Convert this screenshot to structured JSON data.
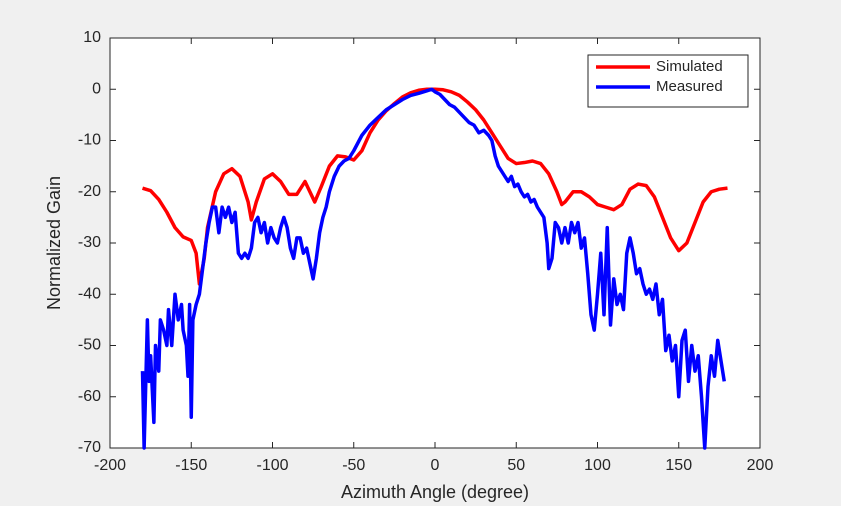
{
  "chart_data": {
    "type": "line",
    "xlabel": "Azimuth Angle (degree)",
    "ylabel": "Normalized Gain",
    "xlim": [
      -200,
      200
    ],
    "xticks": [
      -200,
      -150,
      -100,
      -50,
      0,
      50,
      100,
      150,
      200
    ],
    "ylim": [
      -70,
      10
    ],
    "yticks": [
      -70,
      -60,
      -50,
      -40,
      -30,
      -20,
      -10,
      0,
      10
    ],
    "legend": "northeast",
    "series": [
      {
        "name": "Simulated",
        "color": "#ff0000",
        "x": [
          -180,
          -175,
          -170,
          -165,
          -160,
          -155,
          -150,
          -147,
          -145,
          -142,
          -140,
          -135,
          -130,
          -125,
          -120,
          -115,
          -113,
          -110,
          -105,
          -100,
          -95,
          -90,
          -85,
          -80,
          -77,
          -74,
          -70,
          -65,
          -60,
          -55,
          -50,
          -45,
          -40,
          -35,
          -30,
          -25,
          -20,
          -15,
          -10,
          -5,
          0,
          5,
          10,
          15,
          20,
          25,
          30,
          35,
          40,
          45,
          50,
          55,
          60,
          65,
          70,
          75,
          78,
          80,
          85,
          90,
          95,
          100,
          105,
          110,
          115,
          120,
          125,
          130,
          135,
          140,
          145,
          150,
          155,
          160,
          165,
          170,
          175,
          180
        ],
        "values": [
          -19.3,
          -19.8,
          -21.5,
          -24,
          -27,
          -28.8,
          -29.5,
          -32,
          -38,
          -33,
          -27,
          -20,
          -16.5,
          -15.5,
          -17,
          -22,
          -25.5,
          -22,
          -17.5,
          -16.5,
          -18,
          -20.5,
          -20.5,
          -18,
          -20,
          -22,
          -19,
          -15,
          -13,
          -13.2,
          -13.8,
          -12,
          -8.5,
          -6,
          -4.2,
          -2.8,
          -1.5,
          -0.7,
          -0.2,
          0,
          0,
          -0.1,
          -0.5,
          -1.2,
          -2.5,
          -4,
          -6,
          -8.5,
          -11,
          -13.5,
          -14.5,
          -14.3,
          -14,
          -14.5,
          -16.5,
          -20,
          -22.5,
          -22,
          -20,
          -20,
          -21,
          -22.5,
          -23,
          -23.5,
          -22.5,
          -19.5,
          -18.5,
          -18.8,
          -21,
          -25,
          -29,
          -31.5,
          -30,
          -26,
          -22,
          -20,
          -19.5,
          -19.3
        ]
      },
      {
        "name": "Measured",
        "color": "#0000ff",
        "x": [
          -180,
          -179,
          -177,
          -176,
          -175,
          -173,
          -172,
          -170,
          -169,
          -167,
          -165,
          -164,
          -162,
          -160,
          -158,
          -156,
          -155,
          -153,
          -152,
          -151,
          -150,
          -149,
          -147,
          -145,
          -143,
          -141,
          -139,
          -137,
          -135,
          -133,
          -131,
          -129,
          -127,
          -125,
          -123,
          -121,
          -119,
          -117,
          -115,
          -113,
          -111,
          -109,
          -107,
          -105,
          -103,
          -101,
          -99,
          -97,
          -95,
          -93,
          -91,
          -89,
          -87,
          -85,
          -83,
          -81,
          -79,
          -77,
          -75,
          -73,
          -71,
          -69,
          -67,
          -65,
          -62,
          -59,
          -56,
          -53,
          -50,
          -45,
          -40,
          -35,
          -30,
          -25,
          -20,
          -15,
          -10,
          -5,
          -2,
          0,
          3,
          6,
          9,
          12,
          15,
          18,
          21,
          24,
          27,
          30,
          33,
          35,
          37,
          39,
          41,
          43,
          45,
          47,
          49,
          51,
          53,
          55,
          57,
          59,
          61,
          63,
          65,
          67,
          69,
          70,
          72,
          74,
          76,
          78,
          80,
          82,
          84,
          86,
          88,
          90,
          92,
          94,
          96,
          98,
          100,
          102,
          104,
          106,
          108,
          110,
          112,
          114,
          116,
          118,
          120,
          122,
          124,
          126,
          128,
          130,
          132,
          134,
          136,
          138,
          140,
          142,
          144,
          146,
          148,
          150,
          152,
          154,
          156,
          158,
          160,
          162,
          164,
          166,
          168,
          170,
          172,
          174,
          176,
          178
        ],
        "values": [
          -55,
          -70,
          -45,
          -57,
          -52,
          -65,
          -50,
          -55,
          -45,
          -47,
          -50,
          -43,
          -50,
          -40,
          -45,
          -42,
          -47,
          -50,
          -56,
          -42,
          -64,
          -45,
          -42,
          -40,
          -35,
          -30,
          -26,
          -23,
          -23,
          -28,
          -23,
          -25,
          -23,
          -26,
          -24,
          -32,
          -33,
          -32,
          -33,
          -31,
          -26,
          -25,
          -28,
          -26,
          -30,
          -27,
          -29,
          -30,
          -27,
          -25,
          -27,
          -31,
          -33,
          -29,
          -29,
          -32,
          -31,
          -34,
          -37,
          -33,
          -28,
          -25,
          -23,
          -20,
          -17,
          -15,
          -14,
          -13.5,
          -12,
          -9,
          -7,
          -5.5,
          -4,
          -3,
          -2,
          -1.2,
          -0.8,
          -0.3,
          0,
          -0.5,
          -1,
          -2,
          -3,
          -3.5,
          -4.5,
          -5.5,
          -6.5,
          -7,
          -8.5,
          -8,
          -9,
          -10,
          -13,
          -15,
          -16,
          -17,
          -18,
          -17,
          -19,
          -18.5,
          -20,
          -21,
          -20.5,
          -22,
          -21.5,
          -23,
          -24,
          -25,
          -30,
          -35,
          -33,
          -26,
          -27,
          -30,
          -27,
          -30,
          -26,
          -28,
          -26,
          -31,
          -29,
          -36,
          -44,
          -47,
          -40,
          -32,
          -44,
          -27,
          -46,
          -37,
          -42,
          -40,
          -43,
          -32,
          -29,
          -32,
          -36,
          -35,
          -38,
          -40,
          -39,
          -41,
          -38,
          -44,
          -41,
          -51,
          -48,
          -53,
          -50,
          -60,
          -49,
          -47,
          -57,
          -50,
          -55,
          -52,
          -60,
          -70,
          -58,
          -52,
          -56,
          -49,
          -53,
          -57
        ]
      }
    ]
  }
}
